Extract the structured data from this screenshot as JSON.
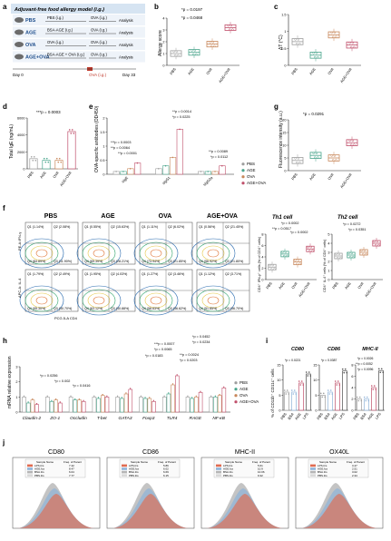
{
  "figure": {
    "panels": {
      "a": {
        "letter": "a",
        "title": "Adjuvant-free food allergy model (i.g.)",
        "groups": [
          {
            "label": "PBS",
            "left": "PBS (i.g.)",
            "right": "OVA (i.g.)",
            "end": "Analysis"
          },
          {
            "label": "AGE",
            "left": "BSA-AGE (i.g.)",
            "right": "OVA (i.g.)",
            "end": "Analysis"
          },
          {
            "label": "OVA",
            "left": "OVA (i.g.)",
            "right": "OVA (i.g.)",
            "end": "Analysis"
          },
          {
            "label": "AGE+OVA",
            "left": "BSA-AGE + OVA (i.g.)",
            "right": "OVA (i.g.)",
            "end": "Analysis"
          }
        ],
        "day0": "Day 0",
        "day33": "Day 33",
        "challenge": "OVA (i.g.)"
      },
      "b": {
        "letter": "b",
        "ylabel": "Allergy score",
        "p1": "*p = 0.0197",
        "p2": "*p = 0.0468"
      },
      "c": {
        "letter": "c",
        "ylabel": "ΔT (°C)"
      },
      "d": {
        "letter": "d",
        "ylabel": "Total IgE (ng/mL)",
        "p1": "***p = 0.0003"
      },
      "e": {
        "letter": "e",
        "ylabel": "OVA-specific antibodies (OD450)",
        "pvals": [
          "**p = 0.0014",
          "*p = 0.0225",
          "***p = 0.0003",
          "**p = 0.0064",
          "**p = 0.0001",
          "**p = 0.0089",
          "*p = 0.0112"
        ],
        "groups": [
          "sIgE",
          "sIgG1",
          "sIgG2a"
        ]
      },
      "g": {
        "letter": "g",
        "ylabel": "Fluorescence intensity (a.u.)",
        "p1": "*p = 0.0291"
      },
      "f": {
        "letter": "f",
        "cols": [
          "PBS",
          "AGE",
          "OVA",
          "AGE+OVA"
        ],
        "row1y": "PE-A:IFN-γ",
        "row2y": "APC-A: IL-4",
        "xlabel": "PCG.5-A CD4",
        "row1": [
          [
            "Q1 (1.14%)",
            "Q2 (2.08%)",
            "Q4 (84.89%)",
            "Q3 (11.90%)"
          ],
          [
            "Q1 (0.55%)",
            "Q2 (15.63%)",
            "Q4 (69.39%)",
            "Q3 (28.21%)"
          ],
          [
            "Q1 (1.11%)",
            "Q2 (6.02%)",
            "Q4 (73.94%)",
            "Q3 (21.85%)"
          ],
          [
            "Q1 (0.56%)",
            "Q2 (21.45%)",
            "Q4 (56.92%)",
            "Q3 (21.80%)"
          ]
        ],
        "row2": [
          [
            "Q1 (1.79%)",
            "Q2 (2.49%)",
            "Q4 (95.30%)",
            "Q3 (30.70%)"
          ],
          [
            "Q1 (1.95%)",
            "Q2 (4.03%)",
            "Q4 (63.12%)",
            "Q3 (30.88%)"
          ],
          [
            "Q1 (1.27%)",
            "Q2 (3.46%)",
            "Q4 (58.63%)",
            "Q3 (36.62%)"
          ],
          [
            "Q1 (1.12%)",
            "Q2 (3.71%)",
            "Q4 (51.85%)",
            "Q3 (36.70%)"
          ]
        ],
        "th1": {
          "title": "Th1 cell",
          "ylabel": "CD4⁺ IFN-γ⁺ cells (% of CD4⁺ cells)",
          "pvals": [
            "*p = 0.0002",
            "**p = 0.0517",
            "*p = 0.0002"
          ]
        },
        "th2": {
          "title": "Th2 cell",
          "ylabel": "CD4⁺ IL-4⁺ cells (% of CD4⁺ cells)",
          "pvals": [
            "*p = 0.0272",
            "*p = 0.0351"
          ]
        }
      },
      "h": {
        "letter": "h",
        "ylabel": "mRNA relative expression",
        "genes": [
          "Claudin-2",
          "ZO-1",
          "Occludin",
          "T-bet",
          "GATA3",
          "Foxp3",
          "TLR4",
          "RAGE",
          "NF-κB"
        ],
        "pvals": [
          "*p = 0.0452",
          "*p = 0.0234",
          "***p = 0.0007",
          "*p = 0.0065",
          "*p = 0.0183",
          "**p = 0.0024",
          "*p = 0.0203",
          "*p = 0.0256",
          "*p = 0.002",
          "*p = 0.0416"
        ]
      },
      "i": {
        "letter": "i",
        "ylabel": "% of CD11b⁺ CD11c⁺ cells",
        "titles": [
          "CD80",
          "CD86",
          "MHC-II"
        ],
        "cats": [
          "PBS",
          "BSA",
          "AGE",
          "LPS"
        ],
        "pvals": [
          "*p = 0.0221",
          "*p = 0.0387",
          "*p = 0.0026",
          "**p = 0.0052",
          "*p = 0.0096"
        ]
      },
      "j": {
        "letter": "j",
        "titles": [
          "CD80",
          "CD86",
          "MHC-II",
          "OX40L"
        ],
        "legend_head": [
          "Sample Name",
          "Freq. of Parent"
        ],
        "rows": [
          [
            "LPS.fcs",
            "AGE.fcs",
            "BSA.fcs",
            "PBS.fcs"
          ]
        ],
        "values": [
          [
            "7.42",
            "8.47",
            "6.04",
            "7.77"
          ],
          [
            "5.86",
            "6.02",
            "6.69",
            "6.15"
          ],
          [
            "5.61",
            "10.9",
            "10.06",
            "9.32"
          ],
          [
            "3.47",
            "2.51",
            "3.02",
            "2.34"
          ]
        ]
      }
    },
    "legend": {
      "items": [
        "PBS",
        "AGE",
        "OVA",
        "AGE+OVA"
      ]
    },
    "colors": {
      "pbs": "#9e9e9e",
      "age": "#4aa58c",
      "ova": "#c8875a",
      "ageova": "#c0506b",
      "flow": "#2b6cb0",
      "histred": "#e06b50",
      "histblue": "#8fb3d9",
      "histgray": "#b5b5b5"
    }
  },
  "chart_data": [
    {
      "type": "box",
      "panel": "b",
      "categories": [
        "PBS",
        "AGE",
        "OVA",
        "AGE+OVA"
      ],
      "values": [
        1.0,
        1.1,
        1.8,
        3.2
      ],
      "ylim": [
        0,
        4
      ]
    },
    {
      "type": "box",
      "panel": "c",
      "categories": [
        "PBS",
        "AGE",
        "OVA",
        "AGE+OVA"
      ],
      "values": [
        0.7,
        0.3,
        0.9,
        0.6
      ],
      "ylim": [
        0,
        1.5
      ]
    },
    {
      "type": "bar",
      "panel": "d",
      "categories": [
        "PBS",
        "AGE",
        "OVA",
        "AGE+OVA"
      ],
      "values": [
        1200,
        1000,
        1000,
        4400
      ],
      "ylim": [
        0,
        6000
      ]
    },
    {
      "type": "bar",
      "panel": "e",
      "categories": [
        "sIgE",
        "sIgG1",
        "sIgG2a"
      ],
      "series": [
        {
          "name": "PBS",
          "values": [
            0.1,
            0.2,
            0.1
          ]
        },
        {
          "name": "AGE",
          "values": [
            0.1,
            0.3,
            0.1
          ]
        },
        {
          "name": "OVA",
          "values": [
            0.2,
            0.6,
            0.1
          ]
        },
        {
          "name": "AGE+OVA",
          "values": [
            0.4,
            1.6,
            0.3
          ]
        }
      ],
      "ylim": [
        0,
        2.0
      ]
    },
    {
      "type": "box",
      "panel": "g",
      "categories": [
        "PBS",
        "AGE",
        "OVA",
        "AGE+OVA"
      ],
      "values": [
        4,
        6,
        5,
        11
      ],
      "ylim": [
        0,
        20
      ]
    },
    {
      "type": "box",
      "panel": "f-th1",
      "categories": [
        "PBS",
        "AGE",
        "OVA",
        "AGE+OVA"
      ],
      "values": [
        2.2,
        4.5,
        3.1,
        5.4
      ],
      "ylim": [
        0,
        8
      ]
    },
    {
      "type": "box",
      "panel": "f-th2",
      "categories": [
        "PBS",
        "AGE",
        "OVA",
        "AGE+OVA"
      ],
      "values": [
        2.6,
        2.7,
        3.0,
        4.0
      ],
      "ylim": [
        0,
        5
      ]
    },
    {
      "type": "bar",
      "panel": "h",
      "categories": [
        "Claudin-2",
        "ZO-1",
        "Occludin",
        "T-bet",
        "GATA3",
        "Foxp3",
        "TLR4",
        "RAGE",
        "NF-κB"
      ],
      "series": [
        {
          "name": "PBS",
          "values": [
            1,
            1,
            1,
            1,
            1,
            1,
            1,
            1,
            1
          ]
        },
        {
          "name": "AGE",
          "values": [
            0.6,
            0.7,
            0.8,
            0.9,
            0.9,
            0.9,
            1.2,
            0.9,
            1.0
          ]
        },
        {
          "name": "OVA",
          "values": [
            0.8,
            0.8,
            0.8,
            1.1,
            1.2,
            0.9,
            1.8,
            1.0,
            1.1
          ]
        },
        {
          "name": "AGE+OVA",
          "values": [
            0.5,
            0.6,
            0.7,
            1.0,
            1.5,
            0.7,
            2.4,
            1.3,
            1.6
          ]
        }
      ],
      "ylim": [
        0,
        3
      ]
    },
    {
      "type": "bar",
      "panel": "i-CD80",
      "categories": [
        "PBS",
        "BSA",
        "AGE",
        "LPS"
      ],
      "values": [
        6,
        6,
        9,
        12
      ],
      "ylim": [
        0,
        15
      ]
    },
    {
      "type": "bar",
      "panel": "i-CD86",
      "categories": [
        "PBS",
        "BSA",
        "AGE",
        "LPS"
      ],
      "values": [
        5,
        6,
        9,
        13
      ],
      "ylim": [
        0,
        15
      ]
    },
    {
      "type": "bar",
      "panel": "i-MHC-II",
      "categories": [
        "PBS",
        "BSA",
        "AGE",
        "LPS"
      ],
      "values": [
        2,
        2,
        4,
        7
      ],
      "ylim": [
        0,
        8
      ]
    }
  ]
}
